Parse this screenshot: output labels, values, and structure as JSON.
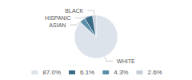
{
  "chart_data": {
    "type": "pie",
    "categories": [
      "WHITE",
      "ASIAN",
      "HISPANIC",
      "BLACK"
    ],
    "values": [
      87.0,
      4.3,
      6.1,
      2.6
    ],
    "value_labels": [
      "87.0%",
      "4.3%",
      "6.1%",
      "2.6%"
    ],
    "colors": [
      "#dde3ea",
      "#5b8fa8",
      "#3a6b87",
      "#c5cdd6"
    ],
    "legend": "bottom"
  }
}
